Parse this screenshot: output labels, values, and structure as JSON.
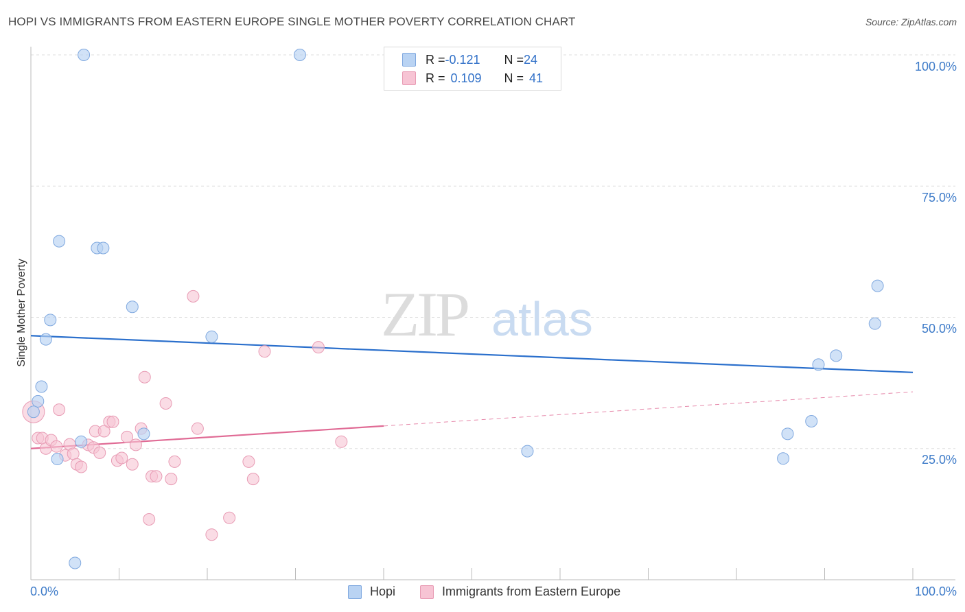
{
  "title": "HOPI VS IMMIGRANTS FROM EASTERN EUROPE SINGLE MOTHER POVERTY CORRELATION CHART",
  "source": "Source: ZipAtlas.com",
  "watermark": {
    "zip": "ZIP",
    "atlas": "atlas"
  },
  "colors": {
    "blue_fill": "#b9d3f3",
    "blue_stroke": "#7fa8df",
    "blue_line": "#2a6fcc",
    "pink_fill": "#f7c4d4",
    "pink_stroke": "#e89bb4",
    "pink_line": "#e06b95",
    "tick_text": "#3f7cc9",
    "grid": "#dddddd"
  },
  "legend_top": {
    "rows": [
      {
        "r_label": "R = ",
        "r_value": "-0.121",
        "n_label": "N = ",
        "n_value": "24"
      },
      {
        "r_label": "R = ",
        "r_value": "0.109",
        "n_label": "N = ",
        "n_value": "41"
      }
    ]
  },
  "chart_data": {
    "type": "scatter",
    "title": "HOPI VS IMMIGRANTS FROM EASTERN EUROPE SINGLE MOTHER POVERTY CORRELATION CHART",
    "xlabel": "",
    "ylabel": "Single Mother Poverty",
    "xlim": [
      0,
      100
    ],
    "ylim": [
      0,
      100
    ],
    "x_tick_labels": [
      "0.0%",
      "100.0%"
    ],
    "y_ticks": [
      25,
      50,
      75,
      100
    ],
    "y_tick_labels": [
      "25.0%",
      "50.0%",
      "75.0%",
      "100.0%"
    ],
    "grid": true,
    "legend_position": "bottom",
    "series": [
      {
        "name": "Hopi",
        "R": -0.121,
        "N": 24,
        "trend": {
          "x0": 0,
          "y0": 46.5,
          "x1": 100,
          "y1": 39.5
        },
        "points": [
          {
            "x": 6,
            "y": 100
          },
          {
            "x": 30.5,
            "y": 100
          },
          {
            "x": 3.2,
            "y": 64.5
          },
          {
            "x": 7.5,
            "y": 63.2
          },
          {
            "x": 8.2,
            "y": 63.2
          },
          {
            "x": 11.5,
            "y": 52
          },
          {
            "x": 2.2,
            "y": 49.5
          },
          {
            "x": 1.7,
            "y": 45.8
          },
          {
            "x": 20.5,
            "y": 46.3
          },
          {
            "x": 1.2,
            "y": 36.8
          },
          {
            "x": 0.8,
            "y": 34
          },
          {
            "x": 0.3,
            "y": 32
          },
          {
            "x": 12.8,
            "y": 27.8
          },
          {
            "x": 5.7,
            "y": 26.3
          },
          {
            "x": 3,
            "y": 23
          },
          {
            "x": 56.3,
            "y": 24.5
          },
          {
            "x": 5,
            "y": 3.2
          },
          {
            "x": 96,
            "y": 56
          },
          {
            "x": 95.7,
            "y": 48.8
          },
          {
            "x": 91.3,
            "y": 42.7
          },
          {
            "x": 89.3,
            "y": 41
          },
          {
            "x": 88.5,
            "y": 30.2
          },
          {
            "x": 85.8,
            "y": 27.8
          },
          {
            "x": 85.3,
            "y": 23.1
          }
        ]
      },
      {
        "name": "Immigrants from Eastern Europe",
        "R": 0.109,
        "N": 41,
        "trend": {
          "x0": 0,
          "y0": 25,
          "x1": 40,
          "y1": 29.3
        },
        "trend_dashed": {
          "x0": 40,
          "y0": 29.3,
          "x1": 100,
          "y1": 35.8
        },
        "points": [
          {
            "x": 0.3,
            "y": 32,
            "big": true
          },
          {
            "x": 0.8,
            "y": 27
          },
          {
            "x": 1.3,
            "y": 27
          },
          {
            "x": 1.7,
            "y": 25
          },
          {
            "x": 2.3,
            "y": 26.6
          },
          {
            "x": 2.9,
            "y": 25.4
          },
          {
            "x": 3.2,
            "y": 32.4
          },
          {
            "x": 3.9,
            "y": 23.7
          },
          {
            "x": 4.4,
            "y": 25.8
          },
          {
            "x": 4.8,
            "y": 24
          },
          {
            "x": 5.2,
            "y": 22
          },
          {
            "x": 5.7,
            "y": 21.5
          },
          {
            "x": 6.5,
            "y": 25.7
          },
          {
            "x": 7.1,
            "y": 25.2
          },
          {
            "x": 7.3,
            "y": 28.3
          },
          {
            "x": 7.8,
            "y": 24.2
          },
          {
            "x": 8.3,
            "y": 28.3
          },
          {
            "x": 8.9,
            "y": 30.1
          },
          {
            "x": 9.3,
            "y": 30.1
          },
          {
            "x": 9.8,
            "y": 22.7
          },
          {
            "x": 10.3,
            "y": 23.2
          },
          {
            "x": 10.9,
            "y": 27.2
          },
          {
            "x": 11.5,
            "y": 22
          },
          {
            "x": 11.9,
            "y": 25.7
          },
          {
            "x": 12.5,
            "y": 28.8
          },
          {
            "x": 12.9,
            "y": 38.6
          },
          {
            "x": 13.4,
            "y": 11.5
          },
          {
            "x": 13.7,
            "y": 19.7
          },
          {
            "x": 14.2,
            "y": 19.7
          },
          {
            "x": 15.3,
            "y": 33.6
          },
          {
            "x": 15.9,
            "y": 19.2
          },
          {
            "x": 16.3,
            "y": 22.5
          },
          {
            "x": 18.4,
            "y": 54
          },
          {
            "x": 18.9,
            "y": 28.8
          },
          {
            "x": 20.5,
            "y": 8.6
          },
          {
            "x": 22.5,
            "y": 11.8
          },
          {
            "x": 24.7,
            "y": 22.5
          },
          {
            "x": 25.2,
            "y": 19.2
          },
          {
            "x": 26.5,
            "y": 43.5
          },
          {
            "x": 32.6,
            "y": 44.3
          },
          {
            "x": 35.2,
            "y": 26.3
          }
        ]
      }
    ]
  },
  "legend_bottom": [
    {
      "label": "Hopi"
    },
    {
      "label": "Immigrants from Eastern Europe"
    }
  ]
}
